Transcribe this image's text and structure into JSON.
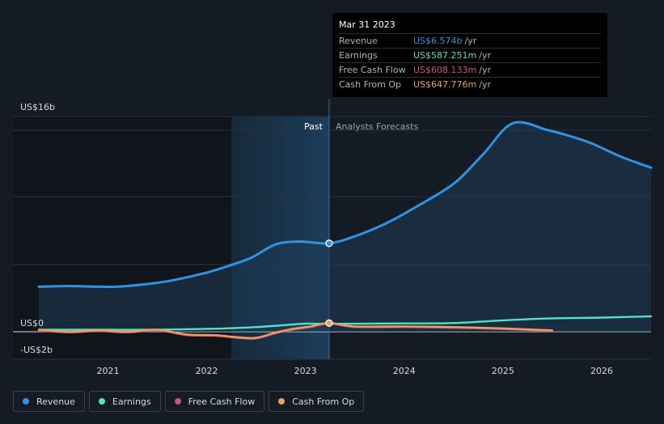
{
  "chart_data": {
    "type": "line",
    "title": "",
    "y_unit_labels": [
      "US$16b",
      "US$0",
      "-US$2b"
    ],
    "y_unit_values": [
      16,
      0,
      -2
    ],
    "ylim": [
      -2,
      16
    ],
    "xlim": [
      2020.3,
      2026.5
    ],
    "x_ticks": [
      "2021",
      "2022",
      "2023",
      "2024",
      "2025",
      "2026"
    ],
    "x_tick_values": [
      2021,
      2022,
      2023,
      2024,
      2025,
      2026
    ],
    "past_label": "Past",
    "forecast_label": "Analysts Forecasts",
    "divider_x": 2023.24,
    "highlight_start": 2022.25,
    "series": [
      {
        "name": "Revenue",
        "color": "#2f93e2",
        "fill": true,
        "x": [
          2020.3,
          2020.6,
          2020.9,
          2021.1,
          2021.4,
          2021.6,
          2021.8,
          2022.0,
          2022.2,
          2022.45,
          2022.7,
          2022.95,
          2023.24,
          2023.5,
          2023.8,
          2024.1,
          2024.5,
          2024.8,
          2025.1,
          2025.45,
          2025.7,
          2025.9,
          2026.2,
          2026.5
        ],
        "y": [
          3.35,
          3.4,
          3.35,
          3.35,
          3.55,
          3.75,
          4.05,
          4.4,
          4.85,
          5.5,
          6.5,
          6.7,
          6.574,
          7.1,
          8.0,
          9.2,
          11.0,
          13.2,
          15.5,
          15.0,
          14.5,
          14.0,
          13.0,
          12.2
        ]
      },
      {
        "name": "Earnings",
        "color": "#55e0c4",
        "fill": false,
        "x": [
          2020.3,
          2020.9,
          2021.4,
          2021.9,
          2022.2,
          2022.5,
          2022.8,
          2023.0,
          2023.24,
          2023.6,
          2024.0,
          2024.5,
          2025.0,
          2025.5,
          2026.0,
          2026.5
        ],
        "y": [
          0.15,
          0.15,
          0.15,
          0.2,
          0.25,
          0.35,
          0.5,
          0.6,
          0.587,
          0.6,
          0.62,
          0.65,
          0.85,
          1.0,
          1.05,
          1.15
        ]
      },
      {
        "name": "Free Cash Flow",
        "color": "#cc4f8b",
        "fill": false,
        "x": [
          2020.3,
          2020.6,
          2020.9,
          2021.2,
          2021.5,
          2021.8,
          2022.1,
          2022.3,
          2022.5,
          2022.7,
          2022.9,
          2023.05,
          2023.24,
          2023.5,
          2024.0,
          2024.5,
          2025.0,
          2025.5
        ],
        "y": [
          0.1,
          -0.05,
          0.05,
          -0.05,
          0.1,
          -0.25,
          -0.3,
          -0.45,
          -0.5,
          -0.1,
          0.2,
          0.35,
          0.608,
          0.35,
          0.35,
          0.3,
          0.2,
          0.05
        ]
      },
      {
        "name": "Cash From Op",
        "color": "#e6a15a",
        "fill": false,
        "x": [
          2020.3,
          2020.6,
          2020.9,
          2021.2,
          2021.5,
          2021.8,
          2022.1,
          2022.3,
          2022.5,
          2022.7,
          2022.9,
          2023.05,
          2023.24,
          2023.5,
          2024.0,
          2024.5,
          2025.0,
          2025.5
        ],
        "y": [
          0.15,
          0.0,
          0.1,
          0.0,
          0.15,
          -0.2,
          -0.25,
          -0.4,
          -0.45,
          -0.05,
          0.25,
          0.4,
          0.648,
          0.4,
          0.4,
          0.35,
          0.25,
          0.1
        ]
      }
    ],
    "markers": [
      {
        "series": "Revenue",
        "x": 2023.24,
        "y": 6.574,
        "color": "#2f93e2"
      },
      {
        "series": "Cash From Op",
        "x": 2023.24,
        "y": 0.648,
        "color": "#e6a15a"
      }
    ]
  },
  "tooltip": {
    "date": "Mar 31 2023",
    "rows": [
      {
        "label": "Revenue",
        "value": "US$6.574b",
        "unit": "/yr",
        "color": "#2f93e2"
      },
      {
        "label": "Earnings",
        "value": "US$587.251m",
        "unit": "/yr",
        "color": "#55e0c4"
      },
      {
        "label": "Free Cash Flow",
        "value": "US$608.133m",
        "unit": "/yr",
        "color": "#cc4f8b"
      },
      {
        "label": "Cash From Op",
        "value": "US$647.776m",
        "unit": "/yr",
        "color": "#e6a15a"
      }
    ]
  },
  "legend": [
    {
      "label": "Revenue",
      "color": "#2f93e2"
    },
    {
      "label": "Earnings",
      "color": "#55e0c4"
    },
    {
      "label": "Free Cash Flow",
      "color": "#cc4f8b"
    },
    {
      "label": "Cash From Op",
      "color": "#e6a15a"
    }
  ]
}
